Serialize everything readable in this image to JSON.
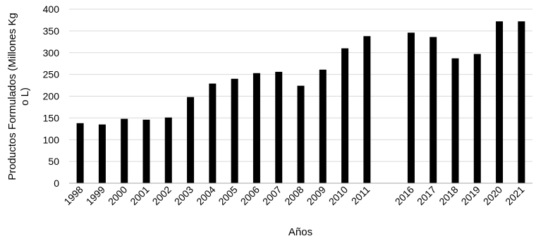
{
  "chart_data": {
    "type": "bar",
    "title": "",
    "xlabel": "Años",
    "ylabel": "Productos Formulados (Millones Kg o L)",
    "ylabel_lines": [
      "Productos Formulados (Millones Kg",
      "o L)"
    ],
    "ylim": [
      0,
      400
    ],
    "yticks": [
      0,
      50,
      100,
      150,
      200,
      250,
      300,
      350,
      400
    ],
    "grid": "horizontal",
    "legend": "none",
    "categories": [
      "1998",
      "1999",
      "2000",
      "2001",
      "2002",
      "2003",
      "2004",
      "2005",
      "2006",
      "2007",
      "2008",
      "2009",
      "2010",
      "2011",
      "",
      "2016",
      "2017",
      "2018",
      "2019",
      "2020",
      "2021"
    ],
    "values": [
      138,
      135,
      148,
      146,
      151,
      198,
      229,
      240,
      253,
      256,
      224,
      261,
      310,
      338,
      null,
      346,
      336,
      287,
      297,
      372,
      372
    ],
    "colors": {
      "bar": "#000000",
      "grid": "#d9d9d9",
      "axis": "#a6a6a6"
    }
  }
}
